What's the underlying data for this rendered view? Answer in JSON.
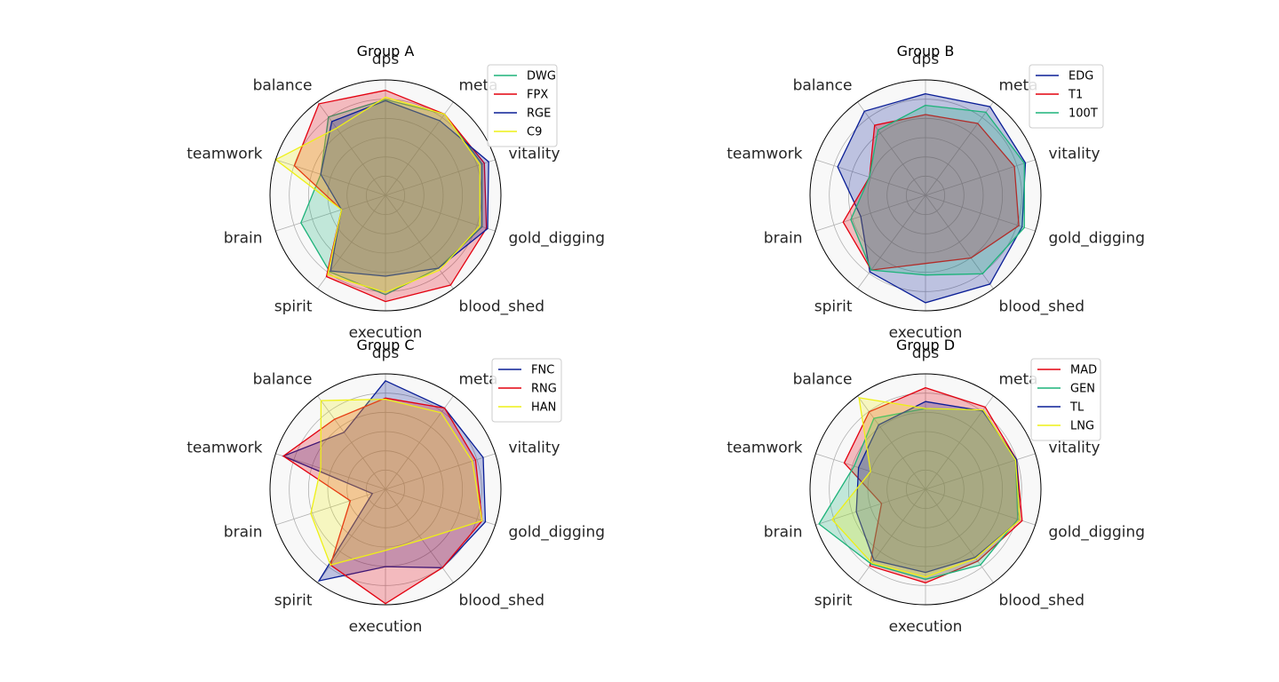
{
  "chart_data": [
    {
      "type": "radar",
      "title": "Group A",
      "axes": [
        "dps",
        "meta",
        "vitality",
        "gold_digging",
        "blood_shed",
        "execution",
        "spirit",
        "brain",
        "teamwork",
        "balance"
      ],
      "range": [
        0,
        1
      ],
      "grid": true,
      "legend": "top-right",
      "series": [
        {
          "name": "DWG",
          "color": "#1db37a",
          "values": [
            0.83,
            0.87,
            0.88,
            0.88,
            0.78,
            0.86,
            0.82,
            0.77,
            0.59,
            0.84
          ]
        },
        {
          "name": "FPX",
          "color": "#e3000f",
          "values": [
            0.91,
            0.87,
            0.9,
            0.92,
            0.96,
            0.92,
            0.87,
            0.4,
            0.83,
            0.98
          ]
        },
        {
          "name": "RGE",
          "color": "#0a1e96",
          "values": [
            0.82,
            0.8,
            0.94,
            0.93,
            0.78,
            0.7,
            0.81,
            0.4,
            0.59,
            0.79
          ]
        },
        {
          "name": "C9",
          "color": "#eef016",
          "values": [
            0.85,
            0.87,
            0.86,
            0.86,
            0.8,
            0.84,
            0.85,
            0.4,
            1.0,
            0.72
          ]
        }
      ]
    },
    {
      "type": "radar",
      "title": "Group B",
      "axes": [
        "dps",
        "meta",
        "vitality",
        "gold_digging",
        "blood_shed",
        "execution",
        "spirit",
        "brain",
        "teamwork",
        "balance"
      ],
      "range": [
        0,
        1
      ],
      "grid": true,
      "legend": "top-right",
      "series": [
        {
          "name": "EDG",
          "color": "#0a1e96",
          "values": [
            0.88,
            0.95,
            0.91,
            0.88,
            0.95,
            0.93,
            0.82,
            0.59,
            0.8,
            0.9
          ]
        },
        {
          "name": "T1",
          "color": "#e3000f",
          "values": [
            0.7,
            0.77,
            0.81,
            0.85,
            0.67,
            0.59,
            0.8,
            0.75,
            0.51,
            0.75
          ]
        },
        {
          "name": "100T",
          "color": "#1db37a",
          "values": [
            0.78,
            0.89,
            0.9,
            0.9,
            0.84,
            0.69,
            0.8,
            0.68,
            0.51,
            0.7
          ]
        }
      ]
    },
    {
      "type": "radar",
      "title": "Group C",
      "axes": [
        "dps",
        "meta",
        "vitality",
        "gold_digging",
        "blood_shed",
        "execution",
        "spirit",
        "brain",
        "teamwork",
        "balance"
      ],
      "range": [
        0,
        1
      ],
      "grid": true,
      "legend": "top-right",
      "series": [
        {
          "name": "FNC",
          "color": "#0a1e96",
          "values": [
            0.94,
            0.87,
            0.89,
            0.91,
            0.84,
            0.67,
            0.98,
            0.12,
            0.93,
            0.61
          ]
        },
        {
          "name": "RNG",
          "color": "#e3000f",
          "values": [
            0.79,
            0.87,
            0.82,
            0.88,
            0.84,
            0.99,
            0.81,
            0.32,
            0.93,
            0.75
          ]
        },
        {
          "name": "HAN",
          "color": "#eef016",
          "values": [
            0.78,
            0.82,
            0.79,
            0.88,
            0.54,
            0.53,
            0.81,
            0.68,
            0.59,
            0.95
          ]
        }
      ]
    },
    {
      "type": "radar",
      "title": "Group D",
      "axes": [
        "dps",
        "meta",
        "vitality",
        "gold_digging",
        "blood_shed",
        "execution",
        "spirit",
        "brain",
        "teamwork",
        "balance"
      ],
      "range": [
        0,
        1
      ],
      "grid": true,
      "legend": "top-right",
      "series": [
        {
          "name": "MAD",
          "color": "#e3000f",
          "values": [
            0.88,
            0.88,
            0.83,
            0.88,
            0.77,
            0.81,
            0.82,
            0.4,
            0.74,
            0.83
          ]
        },
        {
          "name": "GEN",
          "color": "#1db37a",
          "values": [
            0.7,
            0.85,
            0.82,
            0.84,
            0.81,
            0.78,
            0.8,
            0.97,
            0.65,
            0.76
          ]
        },
        {
          "name": "TL",
          "color": "#0a1e96",
          "values": [
            0.76,
            0.84,
            0.83,
            0.86,
            0.73,
            0.72,
            0.76,
            0.63,
            0.61,
            0.69
          ]
        },
        {
          "name": "LNG",
          "color": "#eef016",
          "values": [
            0.7,
            0.85,
            0.82,
            0.86,
            0.74,
            0.76,
            0.79,
            0.85,
            0.5,
            0.98
          ]
        }
      ]
    }
  ]
}
